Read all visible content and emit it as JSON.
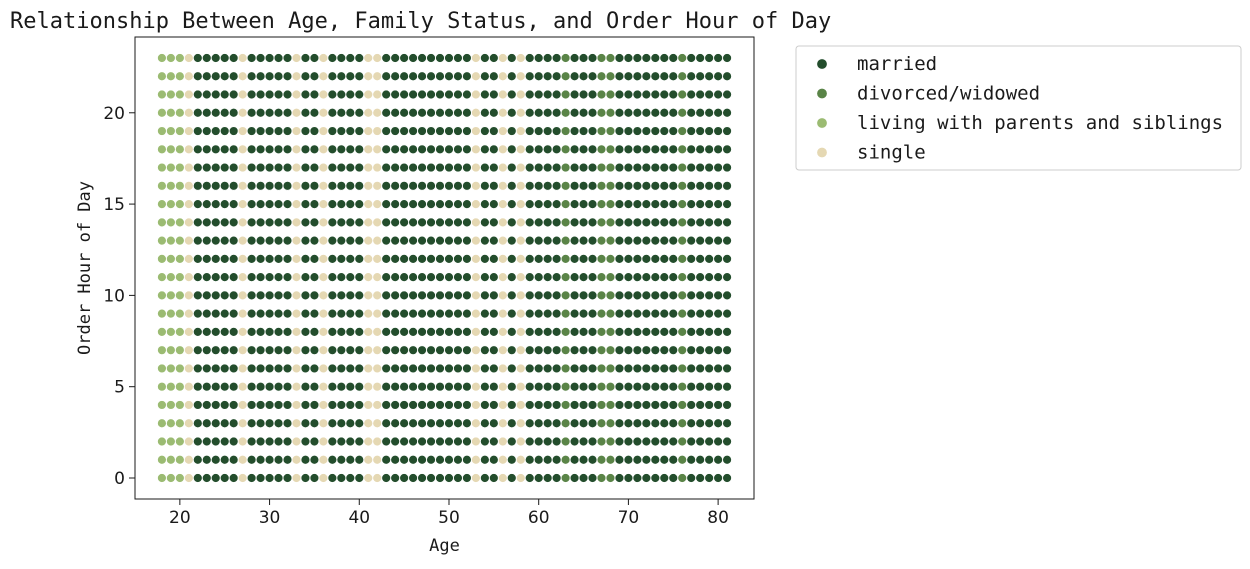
{
  "colors": {
    "married": "#234d2c",
    "divorced/widowed": "#5a8447",
    "living with parents and siblings": "#9bbb72",
    "single": "#e5d8b3"
  },
  "chart_data": {
    "type": "scatter",
    "title": "Relationship Between Age, Family Status, and Order Hour of Day",
    "xlabel": "Age",
    "ylabel": "Order Hour of Day",
    "xlim": [
      15,
      84
    ],
    "ylim": [
      -1.15,
      24.15
    ],
    "xticks": [
      20,
      30,
      40,
      50,
      60,
      70,
      80
    ],
    "yticks": [
      0,
      5,
      10,
      15,
      20
    ],
    "grid": false,
    "legend_placement": "outside-upper-right",
    "x_range": [
      18,
      81
    ],
    "y_range": [
      0,
      23
    ],
    "series": [
      {
        "name": "married"
      },
      {
        "name": "divorced/widowed"
      },
      {
        "name": "living with parents and siblings"
      },
      {
        "name": "single"
      }
    ],
    "status_by_age": {
      "18": "living with parents and siblings",
      "19": "living with parents and siblings",
      "20": "living with parents and siblings",
      "21": "single",
      "22": "married",
      "23": "married",
      "24": "married",
      "25": "married",
      "26": "married",
      "27": "single",
      "28": "married",
      "29": "married",
      "30": "married",
      "31": "married",
      "32": "married",
      "33": "single",
      "34": "married",
      "35": "married",
      "36": "single",
      "37": "married",
      "38": "married",
      "39": "married",
      "40": "married",
      "41": "single",
      "42": "single",
      "43": "married",
      "44": "married",
      "45": "married",
      "46": "married",
      "47": "married",
      "48": "married",
      "49": "married",
      "50": "married",
      "51": "married",
      "52": "married",
      "53": "single",
      "54": "married",
      "55": "married",
      "56": "single",
      "57": "married",
      "58": "single",
      "59": "married",
      "60": "married",
      "61": "married",
      "62": "married",
      "63": "divorced/widowed",
      "64": "married",
      "65": "married",
      "66": "married",
      "67": "divorced/widowed",
      "68": "divorced/widowed",
      "69": "married",
      "70": "married",
      "71": "married",
      "72": "married",
      "73": "married",
      "74": "married",
      "75": "married",
      "76": "divorced/widowed",
      "77": "married",
      "78": "married",
      "79": "married",
      "80": "married",
      "81": "married"
    }
  }
}
